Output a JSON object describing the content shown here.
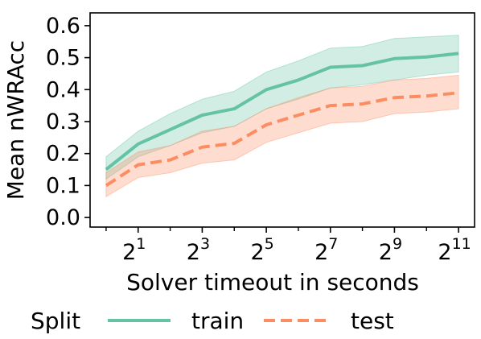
{
  "chart_data": {
    "type": "line",
    "x": [
      0,
      1,
      2,
      3,
      4,
      5,
      6,
      7,
      8,
      9,
      10,
      11
    ],
    "x_tick_positions": [
      1,
      3,
      5,
      7,
      9,
      11
    ],
    "x_tick_labels": [
      {
        "base": "2",
        "exp": "1"
      },
      {
        "base": "2",
        "exp": "3"
      },
      {
        "base": "2",
        "exp": "5"
      },
      {
        "base": "2",
        "exp": "7"
      },
      {
        "base": "2",
        "exp": "9"
      },
      {
        "base": "2",
        "exp": "11"
      }
    ],
    "x_minor_ticks": [
      0,
      2,
      4,
      6,
      8,
      10
    ],
    "x_scale": "log2",
    "xlim": [
      -0.5,
      11.5
    ],
    "xlabel": "Solver timeout in seconds",
    "ylabel": "Mean nWRAcc",
    "ylim": [
      -0.03,
      0.64
    ],
    "y_ticks": [
      0.0,
      0.1,
      0.2,
      0.3,
      0.4,
      0.5,
      0.6
    ],
    "y_tick_labels": [
      "0.0",
      "0.1",
      "0.2",
      "0.3",
      "0.4",
      "0.5",
      "0.6"
    ],
    "grid": false,
    "legend": {
      "title": "Split",
      "placement": "bottom"
    },
    "series": [
      {
        "name": "train",
        "color": "#66c2a5",
        "line_style": "solid",
        "values": [
          0.15,
          0.23,
          0.275,
          0.32,
          0.34,
          0.4,
          0.43,
          0.47,
          0.475,
          0.497,
          0.502,
          0.513
        ],
        "lower": [
          0.12,
          0.19,
          0.225,
          0.265,
          0.285,
          0.34,
          0.37,
          0.405,
          0.415,
          0.43,
          0.445,
          0.455
        ],
        "upper": [
          0.19,
          0.27,
          0.325,
          0.37,
          0.395,
          0.455,
          0.49,
          0.53,
          0.535,
          0.56,
          0.565,
          0.57
        ]
      },
      {
        "name": "test",
        "color": "#fc8d62",
        "line_style": "dashed",
        "values": [
          0.1,
          0.165,
          0.18,
          0.22,
          0.232,
          0.29,
          0.32,
          0.35,
          0.355,
          0.375,
          0.38,
          0.39
        ],
        "lower": [
          0.065,
          0.125,
          0.14,
          0.17,
          0.18,
          0.235,
          0.265,
          0.295,
          0.3,
          0.325,
          0.33,
          0.34
        ],
        "upper": [
          0.14,
          0.205,
          0.225,
          0.27,
          0.285,
          0.34,
          0.375,
          0.405,
          0.41,
          0.43,
          0.435,
          0.445
        ]
      }
    ]
  }
}
